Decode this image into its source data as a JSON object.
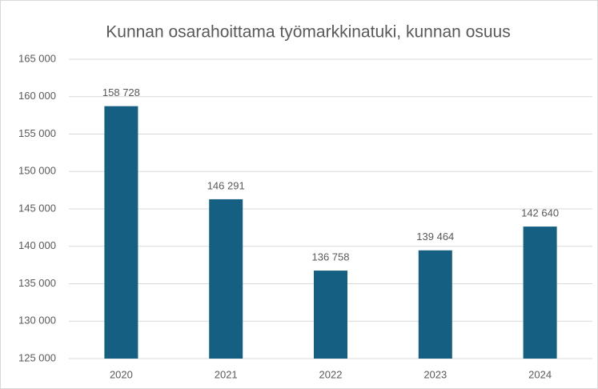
{
  "chart_data": {
    "type": "bar",
    "title": "Kunnan osarahoittama työmarkkinatuki, kunnan osuus",
    "categories": [
      "2020",
      "2021",
      "2022",
      "2023",
      "2024"
    ],
    "values": [
      158728,
      146291,
      136758,
      139464,
      142640
    ],
    "value_labels": [
      "158 728",
      "146 291",
      "136 758",
      "139 464",
      "142 640"
    ],
    "color": "#156082",
    "ylim": [
      125000,
      165000
    ],
    "yticks": [
      {
        "value": 125000,
        "label": "125 000"
      },
      {
        "value": 130000,
        "label": "130 000"
      },
      {
        "value": 135000,
        "label": "135 000"
      },
      {
        "value": 140000,
        "label": "140 000"
      },
      {
        "value": 145000,
        "label": "145 000"
      },
      {
        "value": 150000,
        "label": "150 000"
      },
      {
        "value": 155000,
        "label": "155 000"
      },
      {
        "value": 160000,
        "label": "160 000"
      },
      {
        "value": 165000,
        "label": "165 000"
      }
    ],
    "grid": true
  }
}
